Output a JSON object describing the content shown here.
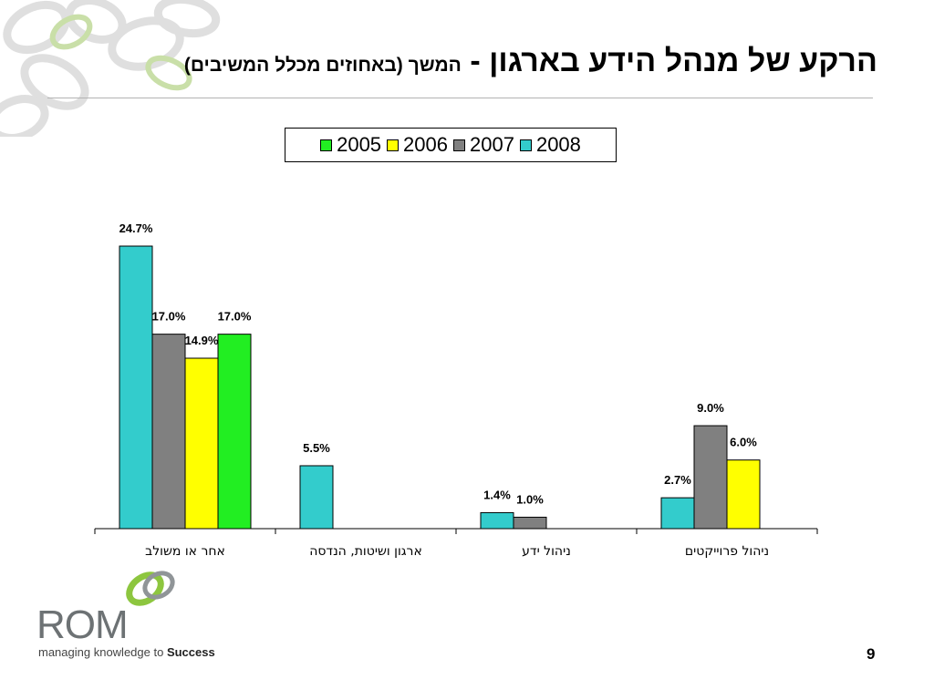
{
  "title": {
    "main": "הרקע של מנהל הידע בארגון",
    "separator": " - ",
    "sub": "המשך (באחוזים מכלל המשיבים)"
  },
  "footer": {
    "brand": "ROM",
    "tagline_prefix": "managing knowledge to ",
    "tagline_bold": "Success",
    "page_number": "9"
  },
  "colors": {
    "2005": "#22ee22",
    "2006": "#ffff00",
    "2007": "#808080",
    "2008": "#33cccc",
    "axis": "#000000",
    "logo_green": "#8dc63f",
    "logo_gray": "#909598"
  },
  "chart_data": {
    "type": "bar",
    "categories": [
      "אחר או משולב",
      "ארגון ושיטות, הנדסה",
      "ניהול ידע",
      "ניהול פרוייקטים"
    ],
    "series": [
      {
        "name": "2008",
        "values": [
          24.7,
          5.5,
          1.4,
          2.7
        ],
        "labels": [
          "24.7%",
          "5.5%",
          "1.4%",
          "2.7%"
        ]
      },
      {
        "name": "2007",
        "values": [
          17.0,
          null,
          1.0,
          9.0
        ],
        "labels": [
          "17.0%",
          null,
          "1.0%",
          "9.0%"
        ]
      },
      {
        "name": "2006",
        "values": [
          14.9,
          null,
          null,
          6.0
        ],
        "labels": [
          "14.9%",
          null,
          null,
          "6.0%"
        ]
      },
      {
        "name": "2005",
        "values": [
          17.0,
          null,
          null,
          null
        ],
        "labels": [
          "17.0%",
          null,
          null,
          null
        ]
      }
    ],
    "legend": {
      "position": "top-center",
      "order": [
        "2005",
        "2006",
        "2007",
        "2008"
      ]
    },
    "ylim": [
      0,
      26
    ],
    "grid": false,
    "xlabel": "",
    "ylabel": ""
  }
}
